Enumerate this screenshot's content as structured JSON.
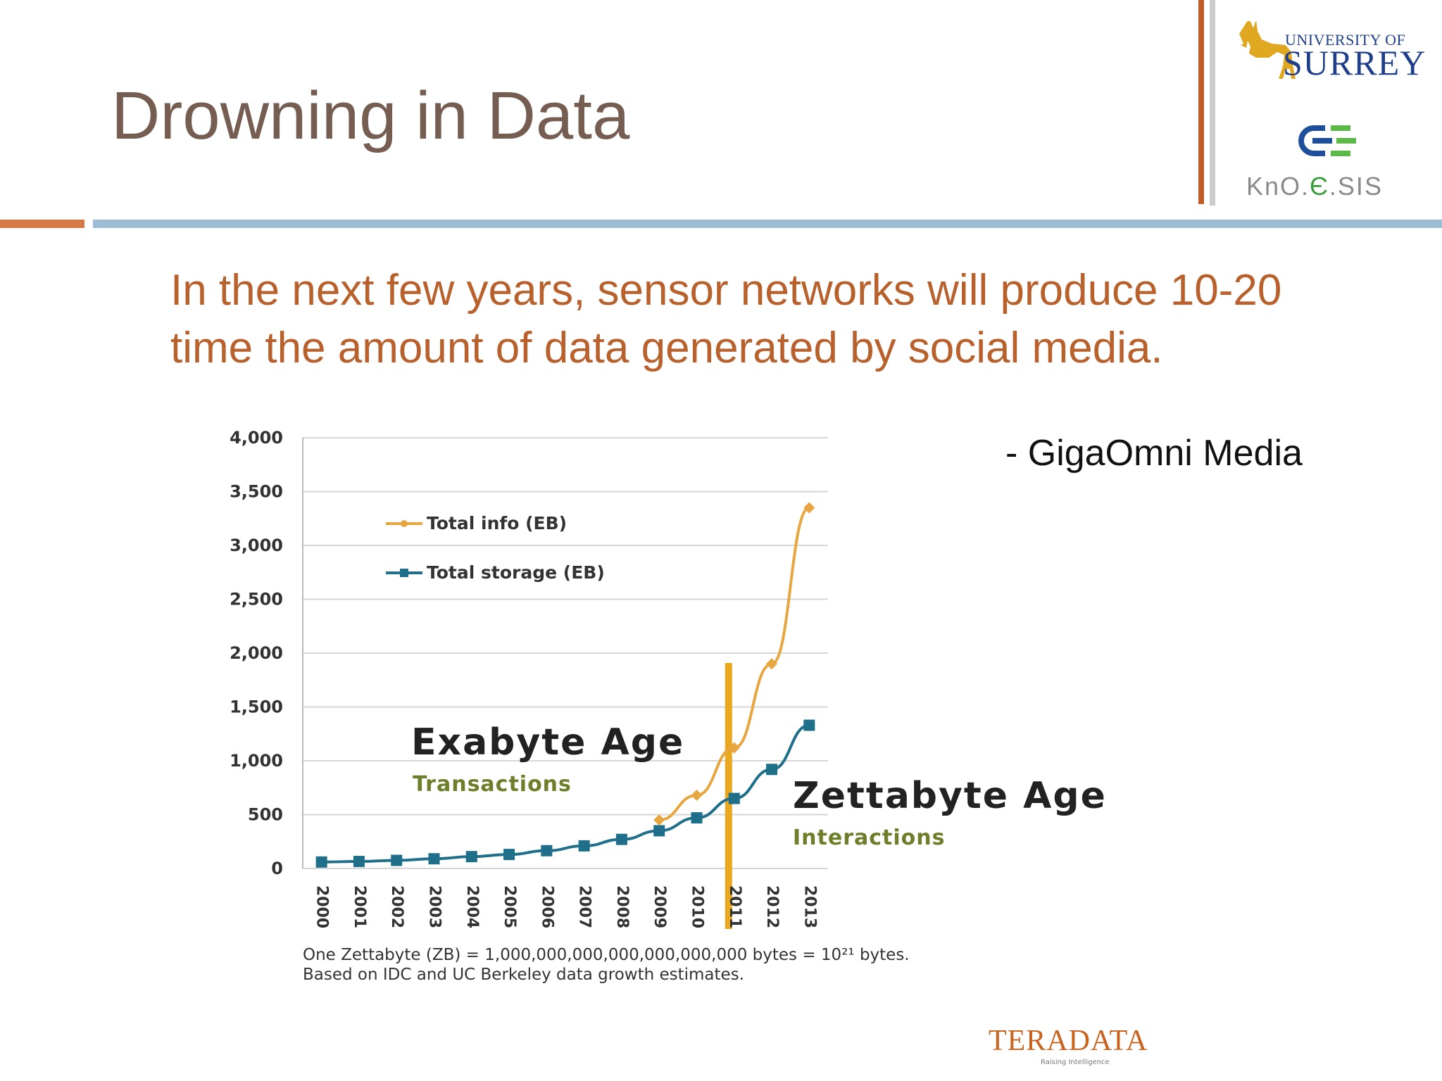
{
  "slide": {
    "title": "Drowning in Data",
    "quote": "In the next few years, sensor networks will produce 10-20 time the amount of data generated by social media.",
    "attribution": "- GigaOmni Media"
  },
  "logos": {
    "surrey_line1": "UNIVERSITY OF",
    "surrey_line2": "SURREY",
    "knoesis_a": "KnO.",
    "knoesis_b": "Є",
    "knoesis_c": ".SIS",
    "teradata": "TERADATA",
    "teradata_tagline": "Raising Intelligence"
  },
  "colors": {
    "title": "#765d52",
    "quote": "#b8612d",
    "orange_series": "#e8a640",
    "blue_series": "#1f6f8b",
    "divider_vertical": "#e8a820"
  },
  "chart_data": {
    "type": "line",
    "x": [
      "2000",
      "2001",
      "2002",
      "2003",
      "2004",
      "2005",
      "2006",
      "2007",
      "2008",
      "2009",
      "2010",
      "2011",
      "2012",
      "2013"
    ],
    "series": [
      {
        "name": "Total info (EB)",
        "values": [
          null,
          null,
          null,
          null,
          null,
          null,
          null,
          null,
          null,
          450,
          680,
          1120,
          1900,
          3350
        ]
      },
      {
        "name": "Total storage (EB)",
        "values": [
          60,
          65,
          75,
          90,
          110,
          130,
          165,
          210,
          270,
          350,
          470,
          650,
          920,
          1330
        ]
      }
    ],
    "yticks": [
      "0",
      "500",
      "1,000",
      "1,500",
      "2,000",
      "2,500",
      "3,000",
      "3,500",
      "4,000"
    ],
    "ylim": [
      0,
      4000
    ],
    "legend_position": "top-left",
    "grid": true,
    "divider_year": "2011",
    "annotations": {
      "exabyte_title": "Exabyte Age",
      "exabyte_sub": "Transactions",
      "zettabyte_title": "Zettabyte Age",
      "zettabyte_sub": "Interactions"
    },
    "footnote_line1": "One Zettabyte (ZB) = 1,000,000,000,000,000,000,000 bytes = 10²¹ bytes.",
    "footnote_line2": "Based on IDC and UC Berkeley data growth estimates."
  }
}
